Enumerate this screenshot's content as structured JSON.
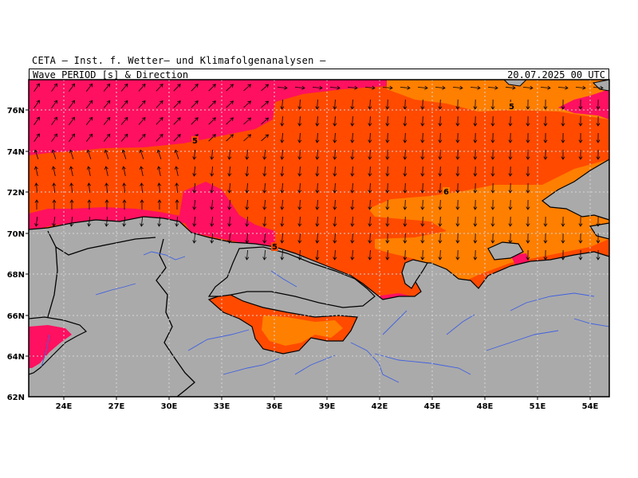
{
  "header": {
    "institute": "CETA – Inst. f. Wetter– und Klimafolgenanalysen –",
    "product": "Wave PERIOD [s] & Direction",
    "timestamp": "20.07.2025 00 UTC"
  },
  "axes": {
    "lat_labels": [
      "76N",
      "74N",
      "72N",
      "70N",
      "68N",
      "66N",
      "64N",
      "62N"
    ],
    "lon_labels": [
      "24E",
      "27E",
      "30E",
      "33E",
      "36E",
      "39E",
      "42E",
      "45E",
      "48E",
      "51E",
      "54E"
    ]
  },
  "contour_labels": [
    "5",
    "5",
    "5",
    "6"
  ],
  "colors": {
    "period_6_plus": "#ff7f00",
    "period_5_6": "#ff4a00",
    "period_4_5": "#ff1060",
    "period_3_4": "#ff2aa0",
    "land": "#aaaaaa",
    "rivers": "#4060e0",
    "grid": "#d0d0d0"
  }
}
